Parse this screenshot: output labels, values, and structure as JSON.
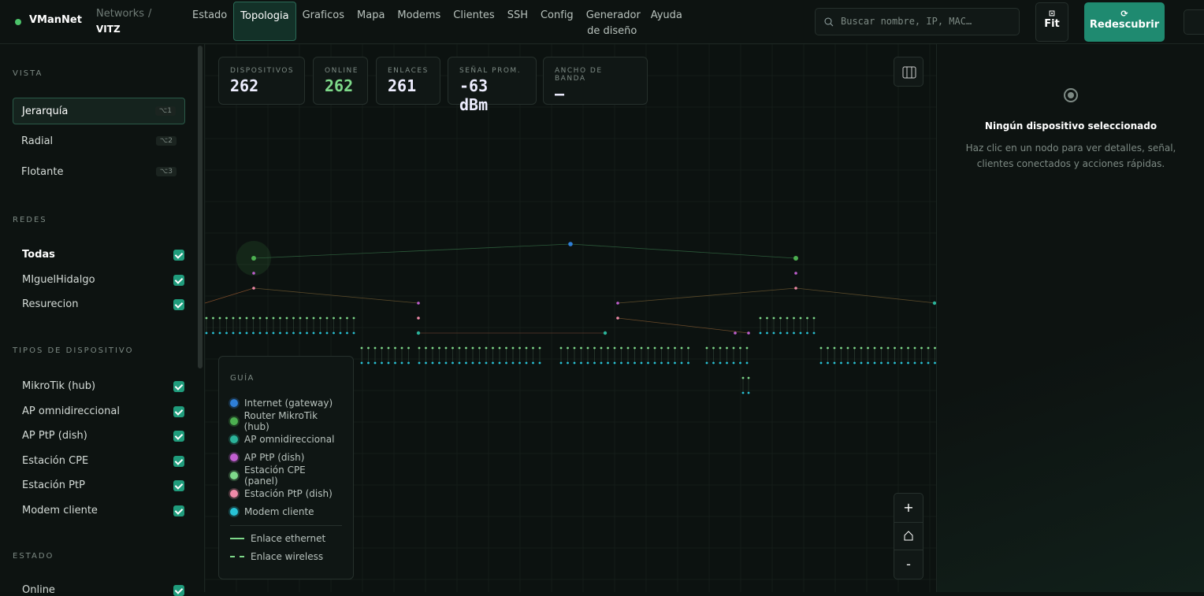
{
  "header": {
    "brand": "VManNet",
    "breadcrumb_root": "Networks",
    "breadcrumb_sep": "/",
    "network": "VITZ",
    "nav": [
      "Estado",
      "Topologia",
      "Graficos",
      "Mapa",
      "Modems",
      "Clientes",
      "SSH",
      "Config",
      "Generador de diseño",
      "Ayuda"
    ],
    "search_placeholder": "Buscar nombre, IP, MAC…",
    "fit": "Fit",
    "rediscover": "Redescubrir"
  },
  "sidebar": {
    "vista_title": "VISTA",
    "views": [
      {
        "label": "Jerarquía",
        "shortcut": "⌥1"
      },
      {
        "label": "Radial",
        "shortcut": "⌥2"
      },
      {
        "label": "Flotante",
        "shortcut": "⌥3"
      }
    ],
    "redes_title": "REDES",
    "networks": [
      "Todas",
      "MIguelHidalgo",
      "Resurecion"
    ],
    "types_title": "TIPOS DE DISPOSITIVO",
    "types": [
      "MikroTik (hub)",
      "AP omnidireccional",
      "AP PtP (dish)",
      "Estación CPE",
      "Estación PtP",
      "Modem cliente"
    ],
    "estado_title": "ESTADO",
    "estado": [
      "Online"
    ]
  },
  "stats": [
    {
      "label": "DISPOSITIVOS",
      "value": 262
    },
    {
      "label": "ONLINE",
      "value": 262
    },
    {
      "label": "ENLACES",
      "value": 261
    },
    {
      "label": "SEÑAL PROM.",
      "value": "-63 dBm"
    },
    {
      "label": "ANCHO DE BANDA",
      "value": "—"
    }
  ],
  "legend": {
    "title": "GUÍA",
    "items": [
      "Internet (gateway)",
      "Router MikroTik (hub)",
      "AP omnidireccional",
      "AP PtP (dish)",
      "Estación CPE (panel)",
      "Estación PtP (dish)",
      "Modem cliente"
    ],
    "links": [
      "Enlace ethernet",
      "Enlace wireless"
    ]
  },
  "zoom": {
    "in": "+",
    "out": "-"
  },
  "detail": {
    "title": "Ningún dispositivo seleccionado",
    "text": "Haz clic en un nodo para ver detalles, señal, clientes conectados y acciones rápidas."
  }
}
